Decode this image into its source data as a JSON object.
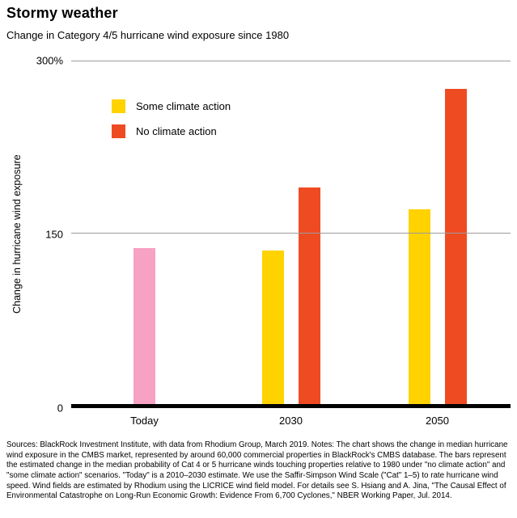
{
  "title": "Stormy weather",
  "subtitle": "Change in Category 4/5 hurricane wind exposure since 1980",
  "legend": [
    {
      "label": "Some climate action",
      "color": "#ffd200"
    },
    {
      "label": "No climate action",
      "color": "#ef4b23"
    }
  ],
  "chart_data": {
    "type": "bar",
    "title": "Stormy weather",
    "subtitle": "Change in Category 4/5 hurricane wind exposure since 1980",
    "ylabel": "Change in hurricane wind exposure",
    "xlabel": "",
    "ylim": [
      0,
      300
    ],
    "grid": "horizontal",
    "legend_position": "top-left-inside",
    "yticks": [
      {
        "value": 300,
        "label": "300%"
      },
      {
        "value": 150,
        "label": "150"
      },
      {
        "value": 0,
        "label": "0"
      }
    ],
    "categories": [
      "Today",
      "2030",
      "2050"
    ],
    "groups": [
      {
        "category": "Today",
        "bars": [
          {
            "name": "Today estimate",
            "value": 136,
            "color": "#f7a1c3"
          }
        ]
      },
      {
        "category": "2030",
        "bars": [
          {
            "name": "Some climate action",
            "value": 134,
            "color": "#ffd200"
          },
          {
            "name": "No climate action",
            "value": 189,
            "color": "#ef4b23"
          }
        ]
      },
      {
        "category": "2050",
        "bars": [
          {
            "name": "Some climate action",
            "value": 170,
            "color": "#ffd200"
          },
          {
            "name": "No climate action",
            "value": 275,
            "color": "#ef4b23"
          }
        ]
      }
    ]
  },
  "footer": "Sources: BlackRock Investment Institute, with data from Rhodium Group, March 2019. Notes: The chart shows the change in median hurricane wind exposure in the CMBS market, represented by around 60,000 commercial properties in BlackRock's CMBS database. The bars represent the estimated change in the median probability of Cat 4 or 5 hurricane winds touching properties relative to 1980 under \"no climate action\" and \"some climate action\" scenarios. \"Today\" is a 2010–2030 estimate. We use the Saffir-Simpson Wind Scale (\"Cat\" 1–5) to rate hurricane wind speed. Wind fields are estimated by Rhodium using the LICRICE wind field model. For details see S. Hsiang and A. Jina, \"The Causal Effect of Environmental Catastrophe on Long-Run Economic Growth: Evidence From 6,700 Cyclones,\" NBER Working Paper, Jul. 2014."
}
